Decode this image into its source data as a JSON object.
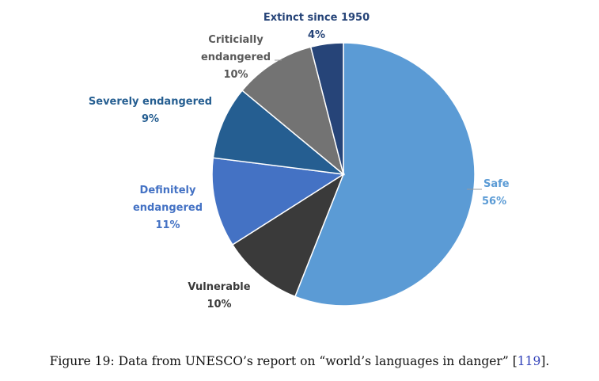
{
  "chart_data": {
    "type": "pie",
    "slices": [
      {
        "label": "Safe",
        "pct_label": "56%",
        "value": 56,
        "color": "#5b9bd5"
      },
      {
        "label": "Vulnerable",
        "pct_label": "10%",
        "value": 10,
        "color": "#3a3a3a"
      },
      {
        "label": "Definitely endangered",
        "label_lines": [
          "Definitely",
          "endangered"
        ],
        "pct_label": "11%",
        "value": 11,
        "color": "#4472c4"
      },
      {
        "label": "Severely endangered",
        "pct_label": "9%",
        "value": 9,
        "color": "#255e91"
      },
      {
        "label": "Criticially endangered",
        "label_lines": [
          "Criticially",
          "endangered"
        ],
        "pct_label": "10%",
        "value": 10,
        "color": "#737373"
      },
      {
        "label": "Extinct since 1950",
        "pct_label": "4%",
        "value": 4,
        "color": "#264478"
      }
    ],
    "label_colors": {
      "Safe": "#5b9bd5",
      "Vulnerable": "#3a3a3a",
      "Definitely endangered": "#4472c4",
      "Severely endangered": "#255e91",
      "Criticially endangered": "#595959",
      "Extinct since 1950": "#264478"
    }
  },
  "caption": {
    "text": "Figure 19: Data from UNESCO’s report on “world’s languages in danger” [",
    "ref": "119",
    "end": "]."
  }
}
